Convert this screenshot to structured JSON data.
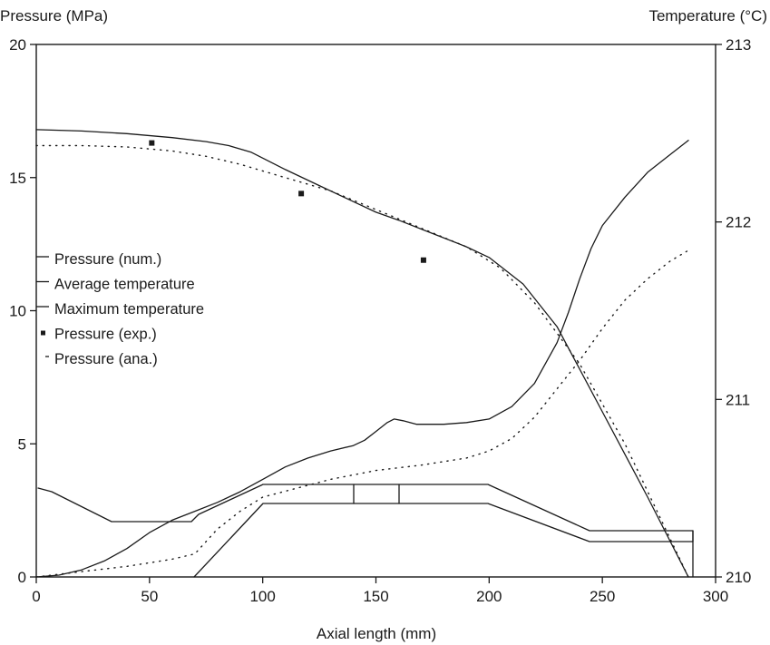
{
  "chart_data": {
    "type": "line",
    "xlabel": "Axial length (mm)",
    "ylabel": "Pressure (MPa)",
    "y2label": "Temperature (°C)",
    "xlim": [
      0,
      300
    ],
    "ylim": [
      0,
      20
    ],
    "y2lim": [
      210,
      213
    ],
    "xticks": [
      "0",
      "50",
      "100",
      "150",
      "200",
      "250",
      "300"
    ],
    "yticks": [
      "0",
      "5",
      "10",
      "15",
      "20"
    ],
    "y2ticks": [
      "210",
      "211",
      "212",
      "213"
    ],
    "grid": false,
    "legend": [
      {
        "label": "Pressure (num.)",
        "style": "solid"
      },
      {
        "label": "Average temperature",
        "style": "solid"
      },
      {
        "label": "Maximum temperature",
        "style": "solid"
      },
      {
        "label": "Pressure (exp.)",
        "style": "marker"
      },
      {
        "label": "Pressure (ana.)",
        "style": "dotted"
      }
    ],
    "series": [
      {
        "name": "Pressure (num.)",
        "axis": "left",
        "style": "solid",
        "x": [
          0,
          20,
          40,
          60,
          75,
          85,
          95,
          110,
          125,
          140,
          150,
          160,
          175,
          190,
          200,
          215,
          230,
          250,
          270,
          288
        ],
        "y": [
          16.8,
          16.75,
          16.65,
          16.5,
          16.35,
          16.2,
          15.95,
          15.3,
          14.7,
          14.1,
          13.7,
          13.4,
          12.9,
          12.4,
          12.0,
          11.0,
          9.4,
          6.2,
          3.0,
          0.0
        ]
      },
      {
        "name": "Pressure (ana.)",
        "axis": "left",
        "style": "dotted",
        "x": [
          0,
          20,
          40,
          60,
          75,
          90,
          110,
          130,
          150,
          170,
          190,
          205,
          220,
          240,
          260,
          288
        ],
        "y": [
          16.2,
          16.2,
          16.15,
          16.0,
          15.8,
          15.5,
          15.0,
          14.5,
          13.8,
          13.1,
          12.4,
          11.6,
          10.3,
          8.0,
          5.0,
          0.0
        ]
      },
      {
        "name": "Pressure (exp.)",
        "axis": "left",
        "style": "marker",
        "x": [
          51,
          117,
          171
        ],
        "y": [
          16.3,
          14.4,
          11.9
        ]
      },
      {
        "name": "Maximum temperature",
        "axis": "right",
        "style": "solid",
        "x": [
          0,
          10,
          20,
          30,
          40,
          50,
          60,
          70,
          80,
          90,
          100,
          110,
          120,
          130,
          140,
          145,
          150,
          155,
          158,
          162,
          168,
          180,
          190,
          200,
          210,
          220,
          230,
          235,
          240,
          245,
          250,
          260,
          270,
          280,
          288
        ],
        "y": [
          210.0,
          210.01,
          210.04,
          210.09,
          210.16,
          210.25,
          210.32,
          210.37,
          210.42,
          210.48,
          210.55,
          210.62,
          210.67,
          210.71,
          210.74,
          210.77,
          210.82,
          210.87,
          210.89,
          210.88,
          210.86,
          210.86,
          210.87,
          210.89,
          210.96,
          211.09,
          211.32,
          211.49,
          211.68,
          211.85,
          211.98,
          212.14,
          212.28,
          212.38,
          212.46
        ]
      },
      {
        "name": "Average temperature",
        "axis": "right",
        "style": "dotted",
        "x": [
          0,
          20,
          40,
          60,
          70,
          80,
          90,
          100,
          115,
          130,
          150,
          170,
          190,
          200,
          210,
          220,
          230,
          240,
          250,
          260,
          270,
          280,
          288
        ],
        "y": [
          210.0,
          210.03,
          210.06,
          210.1,
          210.13,
          210.27,
          210.37,
          210.45,
          210.5,
          210.55,
          210.6,
          210.63,
          210.67,
          210.71,
          210.78,
          210.9,
          211.06,
          211.22,
          211.4,
          211.56,
          211.68,
          211.78,
          211.84
        ]
      }
    ]
  }
}
